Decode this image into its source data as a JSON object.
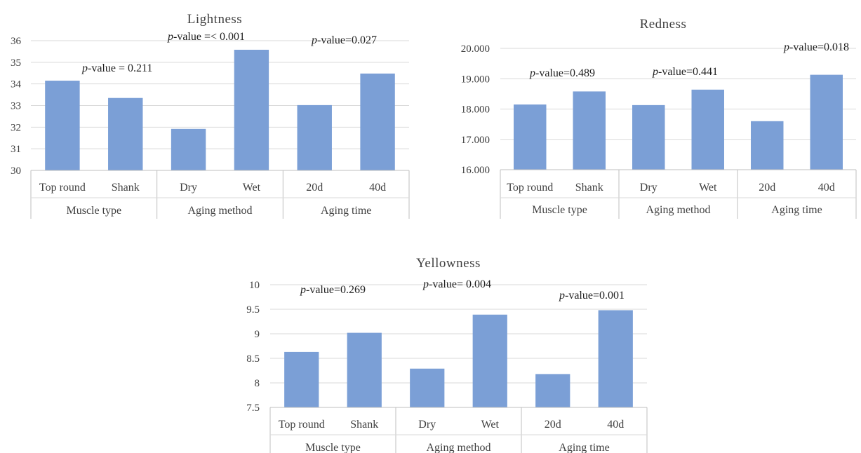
{
  "chart_data": [
    {
      "type": "bar",
      "title": "Lightness",
      "categories": [
        "Top round",
        "Shank",
        "Dry",
        "Wet",
        "20d",
        "40d"
      ],
      "groups": [
        {
          "label": "Muscle type",
          "categories": [
            "Top round",
            "Shank"
          ]
        },
        {
          "label": "Aging method",
          "categories": [
            "Dry",
            "Wet"
          ]
        },
        {
          "label": "Aging time",
          "categories": [
            "20d",
            "40d"
          ]
        }
      ],
      "values": [
        34.15,
        33.35,
        31.92,
        35.58,
        33.02,
        34.48
      ],
      "ylim": [
        30,
        36
      ],
      "yticks": [
        "30",
        "31",
        "32",
        "33",
        "34",
        "35",
        "36"
      ],
      "annotations": [
        {
          "italic": "p",
          "text": "-value = 0.211"
        },
        {
          "italic": "p",
          "text": "-value =< 0.001"
        },
        {
          "italic": "p",
          "text": "-value=0.027"
        }
      ]
    },
    {
      "type": "bar",
      "title": "Redness",
      "categories": [
        "Top round",
        "Shank",
        "Dry",
        "Wet",
        "20d",
        "40d"
      ],
      "groups": [
        {
          "label": "Muscle type",
          "categories": [
            "Top round",
            "Shank"
          ]
        },
        {
          "label": "Aging method",
          "categories": [
            "Dry",
            "Wet"
          ]
        },
        {
          "label": "Aging time",
          "categories": [
            "20d",
            "40d"
          ]
        }
      ],
      "values": [
        18.15,
        18.58,
        18.13,
        18.64,
        17.6,
        19.13
      ],
      "ylim": [
        16,
        20
      ],
      "yticks": [
        "16.000",
        "17.000",
        "18.000",
        "19.000",
        "20.000"
      ],
      "annotations": [
        {
          "italic": "p",
          "text": "-value=0.489"
        },
        {
          "italic": "p",
          "text": "-value=0.441"
        },
        {
          "italic": "p",
          "text": "-value=0.018"
        }
      ]
    },
    {
      "type": "bar",
      "title": "Yellowness",
      "categories": [
        "Top round",
        "Shank",
        "Dry",
        "Wet",
        "20d",
        "40d"
      ],
      "groups": [
        {
          "label": "Muscle type",
          "categories": [
            "Top round",
            "Shank"
          ]
        },
        {
          "label": "Aging method",
          "categories": [
            "Dry",
            "Wet"
          ]
        },
        {
          "label": "Aging time",
          "categories": [
            "20d",
            "40d"
          ]
        }
      ],
      "values": [
        8.63,
        9.02,
        8.29,
        9.39,
        8.18,
        9.48
      ],
      "ylim": [
        7.5,
        10
      ],
      "yticks": [
        "7.5",
        "8",
        "8.5",
        "9",
        "9.5",
        "10"
      ],
      "annotations": [
        {
          "italic": "p",
          "text": "-value=0.269"
        },
        {
          "italic": "p",
          "text": "-value=  0.004"
        },
        {
          "italic": "p",
          "text": "-value=0.001"
        }
      ]
    }
  ],
  "style": {
    "bar_color": "#7b9fd6",
    "grid_color": "#d9d9d9",
    "text_color": "#404040"
  }
}
